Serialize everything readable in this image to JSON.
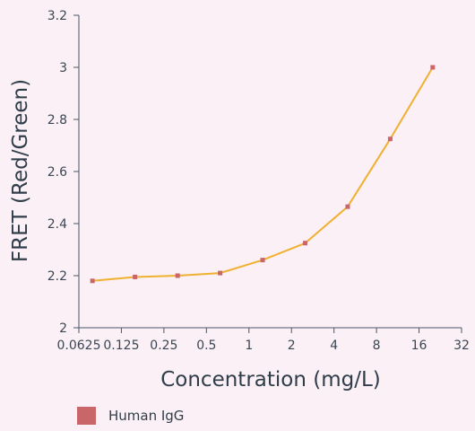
{
  "chart_data": {
    "type": "line",
    "xscale": "log2",
    "x_ticks": [
      "0.0625",
      "0.125",
      "0.25",
      "0.5",
      "1",
      "2",
      "4",
      "8",
      "16",
      "32"
    ],
    "y_ticks": [
      "2",
      "2.2",
      "2.4",
      "2.6",
      "2.8",
      "3",
      "3.2"
    ],
    "xlim": [
      0.0625,
      32
    ],
    "ylim": [
      2,
      3.2
    ],
    "xlabel": "Concentration (mg/L)",
    "ylabel": "FRET (Red/Green)",
    "grid": false,
    "legend_position": "bottom-left",
    "series": [
      {
        "name": "Human IgG",
        "line_color": "#f0b030",
        "marker_color": "#c9666a",
        "points": [
          {
            "x": 0.078,
            "y": 2.18
          },
          {
            "x": 0.156,
            "y": 2.195
          },
          {
            "x": 0.3125,
            "y": 2.2
          },
          {
            "x": 0.625,
            "y": 2.21
          },
          {
            "x": 1.25,
            "y": 2.26
          },
          {
            "x": 2.5,
            "y": 2.325
          },
          {
            "x": 5,
            "y": 2.465
          },
          {
            "x": 10,
            "y": 2.725
          },
          {
            "x": 20,
            "y": 3.0
          }
        ]
      }
    ]
  }
}
